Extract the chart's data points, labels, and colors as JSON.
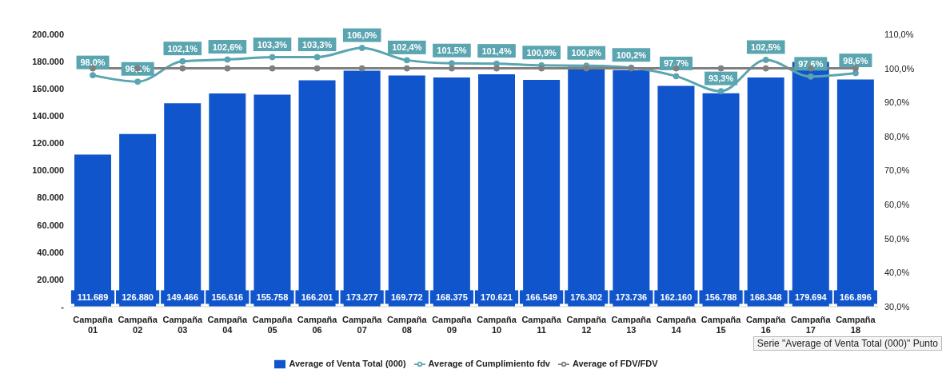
{
  "chart_data": {
    "type": "bar",
    "categories": [
      "Campaña 01",
      "Campaña 02",
      "Campaña 03",
      "Campaña 04",
      "Campaña 05",
      "Campaña 06",
      "Campaña 07",
      "Campaña 08",
      "Campaña 09",
      "Campaña 10",
      "Campaña 11",
      "Campaña 12",
      "Campaña 13",
      "Campaña 14",
      "Campaña 15",
      "Campaña 16",
      "Campaña 17",
      "Campaña 18"
    ],
    "series": [
      {
        "name": "Average of Venta Total (000)",
        "color": "#1155cc",
        "values": [
          111689,
          126880,
          149466,
          156616,
          155758,
          166201,
          173277,
          169772,
          168375,
          170621,
          166549,
          176302,
          173736,
          162160,
          156788,
          168348,
          179694,
          166896
        ],
        "value_labels": [
          "111.689",
          "126.880",
          "149.466",
          "156.616",
          "155.758",
          "166.201",
          "173.277",
          "169.772",
          "168.375",
          "170.621",
          "166.549",
          "176.302",
          "173.736",
          "162.160",
          "156.788",
          "168.348",
          "179.694",
          "166.896"
        ]
      },
      {
        "name": "Average of Cumplimiento fdv",
        "type": "line",
        "axis": "y2",
        "color": "#5aa5b0",
        "values": [
          98.0,
          96.1,
          102.1,
          102.6,
          103.3,
          103.3,
          106.0,
          102.4,
          101.5,
          101.4,
          100.9,
          100.8,
          100.2,
          97.7,
          93.3,
          102.5,
          97.6,
          98.6
        ],
        "value_labels": [
          "98,0%",
          "96,1%",
          "102,1%",
          "102,6%",
          "103,3%",
          "103,3%",
          "106,0%",
          "102,4%",
          "101,5%",
          "101,4%",
          "100,9%",
          "100,8%",
          "100,2%",
          "97,7%",
          "93,3%",
          "102,5%",
          "97,6%",
          "98,6%"
        ]
      },
      {
        "name": "Average of FDV/FDV",
        "type": "line",
        "axis": "y2",
        "color": "#808080",
        "values": [
          100,
          100,
          100,
          100,
          100,
          100,
          100,
          100,
          100,
          100,
          100,
          100,
          100,
          100,
          100,
          100,
          100,
          100
        ]
      }
    ],
    "ylim": [
      0,
      200000
    ],
    "yticks": [
      {
        "value": 0,
        "label": "-"
      },
      {
        "value": 20000,
        "label": "20.000"
      },
      {
        "value": 40000,
        "label": "40.000"
      },
      {
        "value": 60000,
        "label": "60.000"
      },
      {
        "value": 80000,
        "label": "80.000"
      },
      {
        "value": 100000,
        "label": "100.000"
      },
      {
        "value": 120000,
        "label": "120.000"
      },
      {
        "value": 140000,
        "label": "140.000"
      },
      {
        "value": 160000,
        "label": "160.000"
      },
      {
        "value": 180000,
        "label": "180.000"
      },
      {
        "value": 200000,
        "label": "200.000"
      }
    ],
    "y2lim": [
      30,
      110
    ],
    "y2ticks": [
      {
        "value": 30,
        "label": "30,0%"
      },
      {
        "value": 40,
        "label": "40,0%"
      },
      {
        "value": 50,
        "label": "50,0%"
      },
      {
        "value": 60,
        "label": "60,0%"
      },
      {
        "value": 70,
        "label": "70,0%"
      },
      {
        "value": 80,
        "label": "80,0%"
      },
      {
        "value": 90,
        "label": "90,0%"
      },
      {
        "value": 100,
        "label": "100,0%"
      },
      {
        "value": 110,
        "label": "110,0%"
      }
    ],
    "legend": "bottom",
    "marker": "circle",
    "annotations": [
      "Serie \"Average of Venta Total (000)\" Punto"
    ]
  }
}
